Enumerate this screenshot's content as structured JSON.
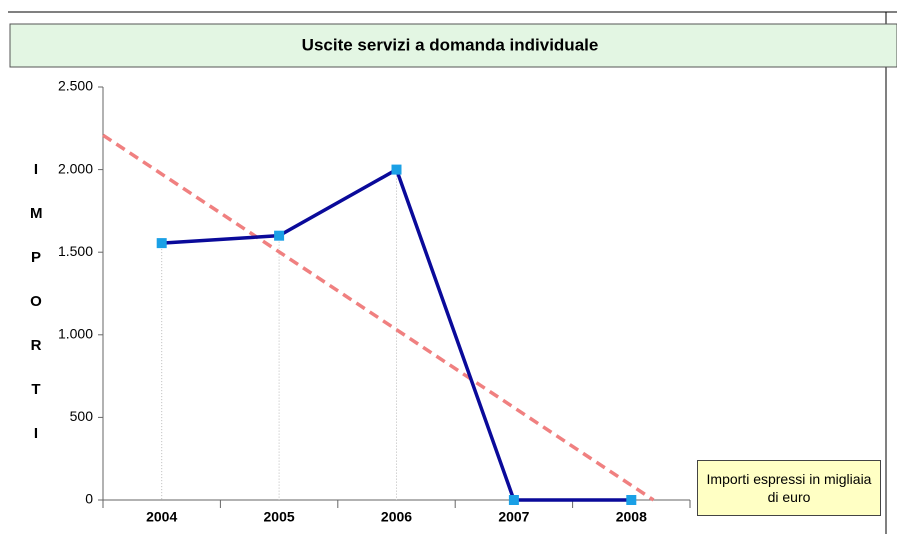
{
  "chart_data": {
    "type": "line",
    "title": "Uscite servizi a domanda individuale",
    "y_label": "IMPORTI",
    "annotation": "Importi espressi in migliaia di euro",
    "categories": [
      "2004",
      "2005",
      "2006",
      "2007",
      "2008"
    ],
    "series": [
      {
        "color": "#0a0a9a",
        "marker_color": "#1aa0e6",
        "values": [
          1555,
          1600,
          2000,
          0,
          0
        ]
      }
    ],
    "trendline": {
      "type": "linear",
      "color": "#f08080"
    },
    "ylim": [
      0,
      2500
    ],
    "yticks": [
      0,
      500,
      {
        "value": 1000,
        "label": "1.000"
      },
      {
        "value": 1500,
        "label": "1.500"
      },
      {
        "value": 2000,
        "label": "2.000"
      },
      {
        "value": 2500,
        "label": "2.500"
      }
    ],
    "drop_lines": true
  }
}
